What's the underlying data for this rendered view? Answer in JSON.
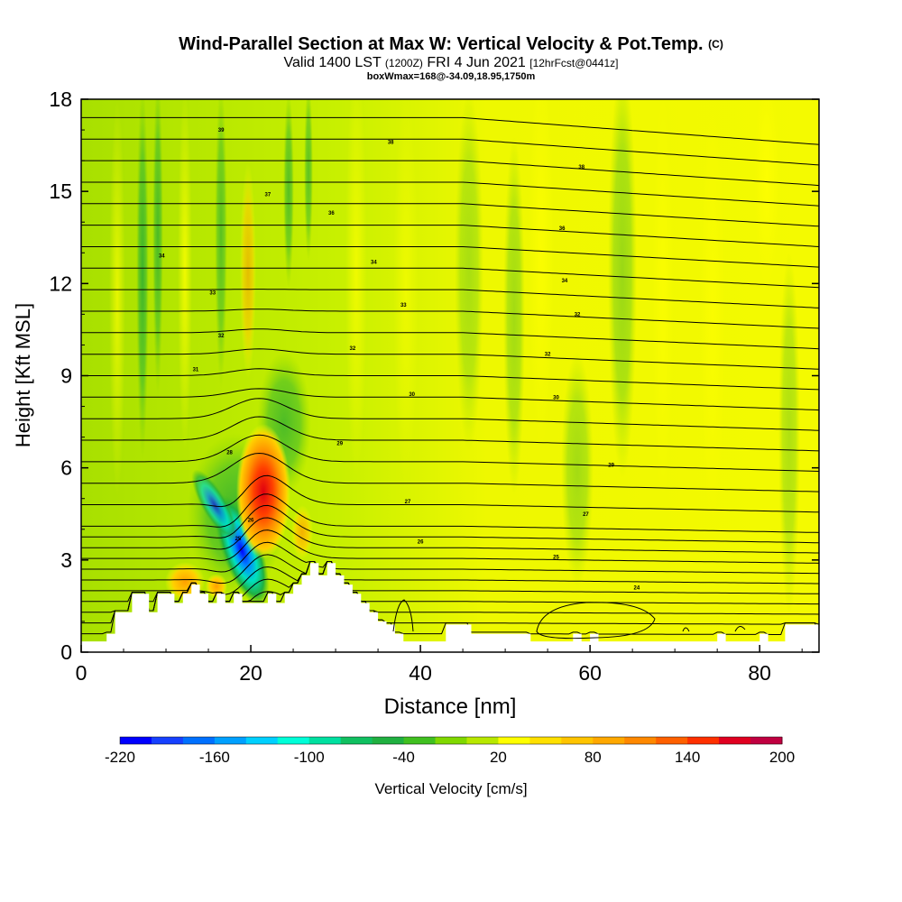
{
  "title": {
    "main": "Wind-Parallel Section at Max W: Vertical Velocity & Pot.Temp.",
    "copyright": "(C)",
    "valid_prefix": "Valid 1400 LST",
    "zulu": "(1200Z)",
    "date": "FRI 4 Jun 2021",
    "forecast": "[12hrFcst@0441z]",
    "box": "boxWmax=168@-34.09,18.95,1750m"
  },
  "chart_data": {
    "type": "heatmap",
    "xlabel": "Distance [nm]",
    "ylabel": "Height [Kft MSL]",
    "xlim": [
      0,
      87
    ],
    "ylim": [
      0,
      18
    ],
    "xticks": [
      0,
      20,
      40,
      60,
      80
    ],
    "yticks": [
      0,
      3,
      6,
      9,
      12,
      15,
      18
    ],
    "colorbar": {
      "label": "Vertical Velocity [cm/s]",
      "ticks": [
        "-220",
        "-160",
        "-100",
        "-40",
        "20",
        "80",
        "140",
        "200"
      ],
      "bounds": [
        -220,
        200
      ],
      "colors": [
        "#0000ff",
        "#1640ff",
        "#0070ff",
        "#00a0ff",
        "#00d0ff",
        "#00ffd8",
        "#00e0a0",
        "#10c060",
        "#20b040",
        "#40c020",
        "#80d800",
        "#b8e800",
        "#ffff00",
        "#ffe000",
        "#ffc400",
        "#ffa800",
        "#ff8800",
        "#ff6000",
        "#ff3000",
        "#e00020",
        "#c00040"
      ]
    },
    "features": [
      {
        "name": "downdraft core",
        "x": 20,
        "y": 2.3,
        "w_cm_s": -220
      },
      {
        "name": "updraft core",
        "x": 21.5,
        "y": 5.5,
        "w_cm_s": 168
      },
      {
        "name": "terrain",
        "x_range": [
          3,
          38
        ],
        "max_height_kft": 3
      }
    ],
    "contour_labels": [
      {
        "text": "39",
        "x": 16.5,
        "y": 17.0
      },
      {
        "text": "38",
        "x": 36.5,
        "y": 16.6
      },
      {
        "text": "38",
        "x": 59.0,
        "y": 15.8
      },
      {
        "text": "37",
        "x": 22.0,
        "y": 14.9
      },
      {
        "text": "36",
        "x": 29.5,
        "y": 14.3
      },
      {
        "text": "36",
        "x": 56.7,
        "y": 13.8
      },
      {
        "text": "34",
        "x": 9.5,
        "y": 12.9
      },
      {
        "text": "34",
        "x": 34.5,
        "y": 12.7
      },
      {
        "text": "34",
        "x": 57.0,
        "y": 12.1
      },
      {
        "text": "33",
        "x": 15.5,
        "y": 11.7
      },
      {
        "text": "33",
        "x": 38.0,
        "y": 11.3
      },
      {
        "text": "32",
        "x": 58.5,
        "y": 11.0
      },
      {
        "text": "32",
        "x": 16.5,
        "y": 10.3
      },
      {
        "text": "32",
        "x": 32.0,
        "y": 9.9
      },
      {
        "text": "32",
        "x": 55.0,
        "y": 9.7
      },
      {
        "text": "31",
        "x": 13.5,
        "y": 9.2
      },
      {
        "text": "30",
        "x": 39.0,
        "y": 8.4
      },
      {
        "text": "30",
        "x": 56.0,
        "y": 8.3
      },
      {
        "text": "29",
        "x": 30.5,
        "y": 6.8
      },
      {
        "text": "29",
        "x": 62.5,
        "y": 6.1
      },
      {
        "text": "28",
        "x": 17.5,
        "y": 6.5
      },
      {
        "text": "27",
        "x": 38.5,
        "y": 4.9
      },
      {
        "text": "27",
        "x": 59.5,
        "y": 4.5
      },
      {
        "text": "26",
        "x": 20.0,
        "y": 4.3
      },
      {
        "text": "26",
        "x": 40.0,
        "y": 3.6
      },
      {
        "text": "25",
        "x": 18.5,
        "y": 3.7
      },
      {
        "text": "25",
        "x": 56.0,
        "y": 3.1
      },
      {
        "text": "24",
        "x": 65.5,
        "y": 2.1
      }
    ]
  }
}
